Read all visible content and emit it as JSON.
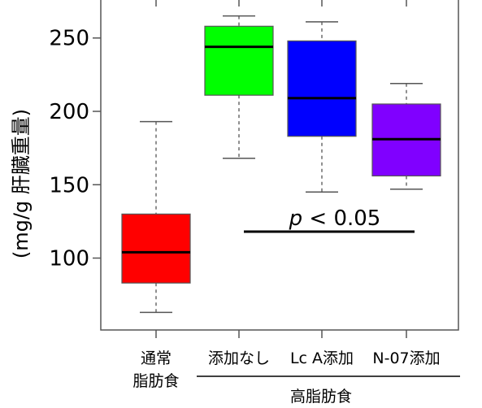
{
  "chart_data": {
    "type": "box",
    "ylabel": "(mg/g 肝臓重量)",
    "ylim": [
      51,
      277
    ],
    "yticks": [
      100,
      150,
      200,
      250
    ],
    "grid": false,
    "categories": [
      {
        "label_lines": [
          "通常",
          "脂肪食"
        ],
        "color": "#ff0000"
      },
      {
        "label_lines": [
          "添加なし"
        ],
        "color": "#00ff00"
      },
      {
        "label_lines": [
          "Lc A添加"
        ],
        "color": "#0000ff"
      },
      {
        "label_lines": [
          "N-07添加"
        ],
        "color": "#8000ff"
      }
    ],
    "boxes": [
      {
        "min": 63,
        "q1": 83,
        "median": 104,
        "q3": 130,
        "max": 193
      },
      {
        "min": 168,
        "q1": 211,
        "median": 244,
        "q3": 258,
        "max": 265
      },
      {
        "min": 145,
        "q1": 183,
        "median": 209,
        "q3": 248,
        "max": 261
      },
      {
        "min": 147,
        "q1": 156,
        "median": 181,
        "q3": 205,
        "max": 219
      }
    ],
    "group_label": "高脂肪食",
    "group_categories": [
      1,
      2,
      3
    ],
    "annotation": {
      "italic": "p",
      "text": " < 0.05",
      "y_value": 118
    }
  }
}
